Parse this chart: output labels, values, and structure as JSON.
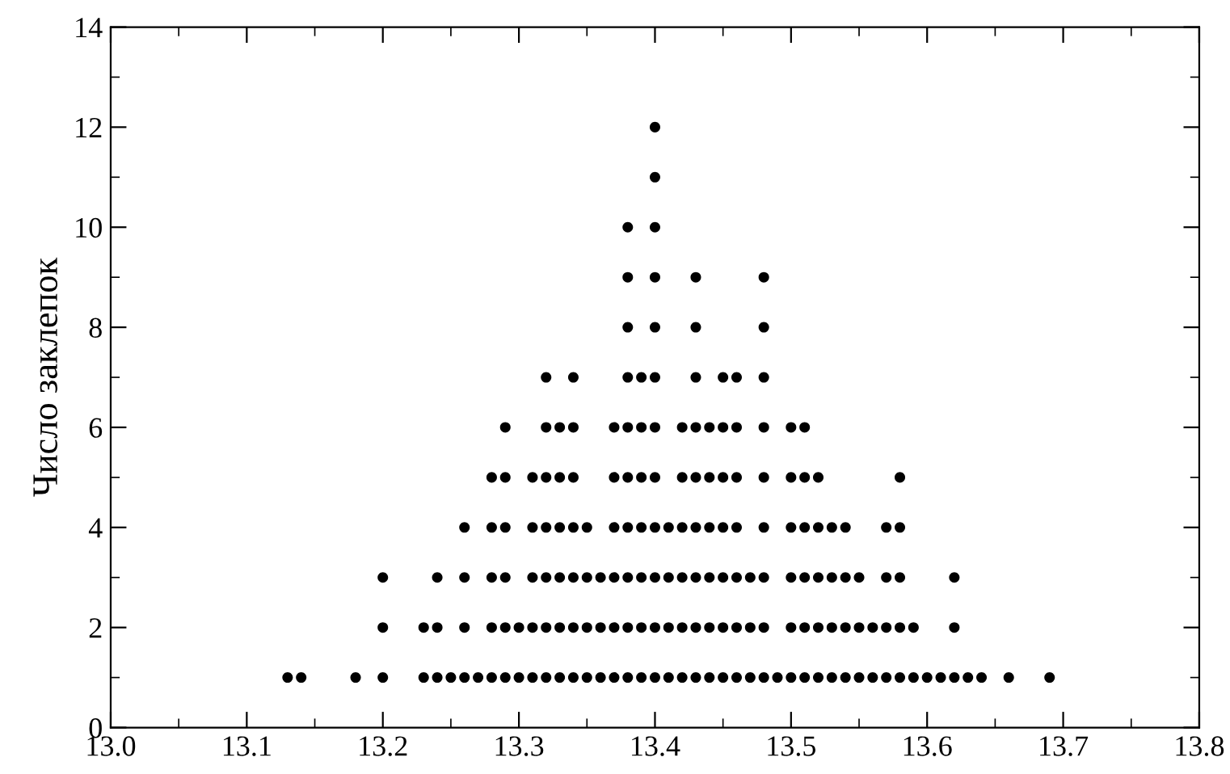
{
  "chart_data": {
    "type": "scatter",
    "ylabel": "Число заклепок",
    "marker": "circle",
    "grid": false,
    "legend": false,
    "series": [
      {
        "color": "#000000",
        "x": [
          13.13,
          13.14,
          13.18,
          13.2,
          13.2,
          13.2,
          13.23,
          13.23,
          13.24,
          13.24,
          13.24,
          13.25,
          13.26,
          13.26,
          13.26,
          13.26,
          13.27,
          13.28,
          13.28,
          13.28,
          13.28,
          13.28,
          13.29,
          13.29,
          13.29,
          13.29,
          13.29,
          13.29,
          13.3,
          13.3,
          13.31,
          13.31,
          13.31,
          13.31,
          13.31,
          13.32,
          13.32,
          13.32,
          13.32,
          13.32,
          13.32,
          13.32,
          13.33,
          13.33,
          13.33,
          13.33,
          13.33,
          13.33,
          13.34,
          13.34,
          13.34,
          13.34,
          13.34,
          13.34,
          13.34,
          13.35,
          13.35,
          13.35,
          13.35,
          13.36,
          13.36,
          13.36,
          13.37,
          13.37,
          13.37,
          13.37,
          13.37,
          13.37,
          13.38,
          13.38,
          13.38,
          13.38,
          13.38,
          13.38,
          13.38,
          13.38,
          13.38,
          13.38,
          13.39,
          13.39,
          13.39,
          13.39,
          13.39,
          13.39,
          13.39,
          13.4,
          13.4,
          13.4,
          13.4,
          13.4,
          13.4,
          13.4,
          13.4,
          13.4,
          13.4,
          13.4,
          13.4,
          13.41,
          13.41,
          13.41,
          13.41,
          13.42,
          13.42,
          13.42,
          13.42,
          13.42,
          13.42,
          13.43,
          13.43,
          13.43,
          13.43,
          13.43,
          13.43,
          13.43,
          13.43,
          13.43,
          13.44,
          13.44,
          13.44,
          13.44,
          13.44,
          13.44,
          13.45,
          13.45,
          13.45,
          13.45,
          13.45,
          13.45,
          13.45,
          13.46,
          13.46,
          13.46,
          13.46,
          13.46,
          13.46,
          13.46,
          13.47,
          13.47,
          13.47,
          13.48,
          13.48,
          13.48,
          13.48,
          13.48,
          13.48,
          13.48,
          13.48,
          13.48,
          13.49,
          13.5,
          13.5,
          13.5,
          13.5,
          13.5,
          13.5,
          13.51,
          13.51,
          13.51,
          13.51,
          13.51,
          13.51,
          13.52,
          13.52,
          13.52,
          13.52,
          13.52,
          13.53,
          13.53,
          13.53,
          13.53,
          13.54,
          13.54,
          13.54,
          13.54,
          13.55,
          13.55,
          13.55,
          13.56,
          13.56,
          13.57,
          13.57,
          13.57,
          13.57,
          13.58,
          13.58,
          13.58,
          13.58,
          13.58,
          13.59,
          13.59,
          13.6,
          13.61,
          13.62,
          13.62,
          13.62,
          13.63,
          13.64,
          13.66,
          13.69
        ],
        "values": [
          1,
          1,
          1,
          1,
          2,
          3,
          1,
          2,
          1,
          2,
          3,
          1,
          1,
          2,
          3,
          4,
          1,
          1,
          2,
          3,
          4,
          5,
          1,
          2,
          3,
          4,
          5,
          6,
          1,
          2,
          1,
          2,
          3,
          4,
          5,
          1,
          2,
          3,
          4,
          5,
          6,
          7,
          1,
          2,
          3,
          4,
          5,
          6,
          1,
          2,
          3,
          4,
          5,
          6,
          7,
          1,
          2,
          3,
          4,
          1,
          2,
          3,
          1,
          2,
          3,
          4,
          5,
          6,
          1,
          2,
          3,
          4,
          5,
          6,
          7,
          8,
          9,
          10,
          1,
          2,
          3,
          4,
          5,
          6,
          7,
          1,
          2,
          3,
          4,
          5,
          6,
          7,
          8,
          9,
          10,
          11,
          12,
          1,
          2,
          3,
          4,
          1,
          2,
          3,
          4,
          5,
          6,
          1,
          2,
          3,
          4,
          5,
          6,
          7,
          8,
          9,
          1,
          2,
          3,
          4,
          5,
          6,
          1,
          2,
          3,
          4,
          5,
          6,
          7,
          1,
          2,
          3,
          4,
          5,
          6,
          7,
          1,
          2,
          3,
          1,
          2,
          3,
          4,
          5,
          6,
          7,
          8,
          9,
          1,
          1,
          2,
          3,
          4,
          5,
          6,
          1,
          2,
          3,
          4,
          5,
          6,
          1,
          2,
          3,
          4,
          5,
          1,
          2,
          3,
          4,
          1,
          2,
          3,
          4,
          1,
          2,
          3,
          1,
          2,
          1,
          2,
          3,
          4,
          1,
          2,
          3,
          4,
          5,
          1,
          2,
          1,
          1,
          1,
          2,
          3,
          1,
          1,
          1,
          1
        ]
      }
    ],
    "xlim": [
      13.0,
      13.8
    ],
    "xticks": [
      {
        "value": 13.0,
        "label": "13.0"
      },
      13.1,
      13.2,
      13.3,
      13.4,
      13.5,
      13.6,
      13.7,
      13.8
    ],
    "ylim": [
      0,
      14
    ],
    "yticks": [
      0,
      2,
      4,
      6,
      8,
      10,
      12,
      14
    ]
  }
}
